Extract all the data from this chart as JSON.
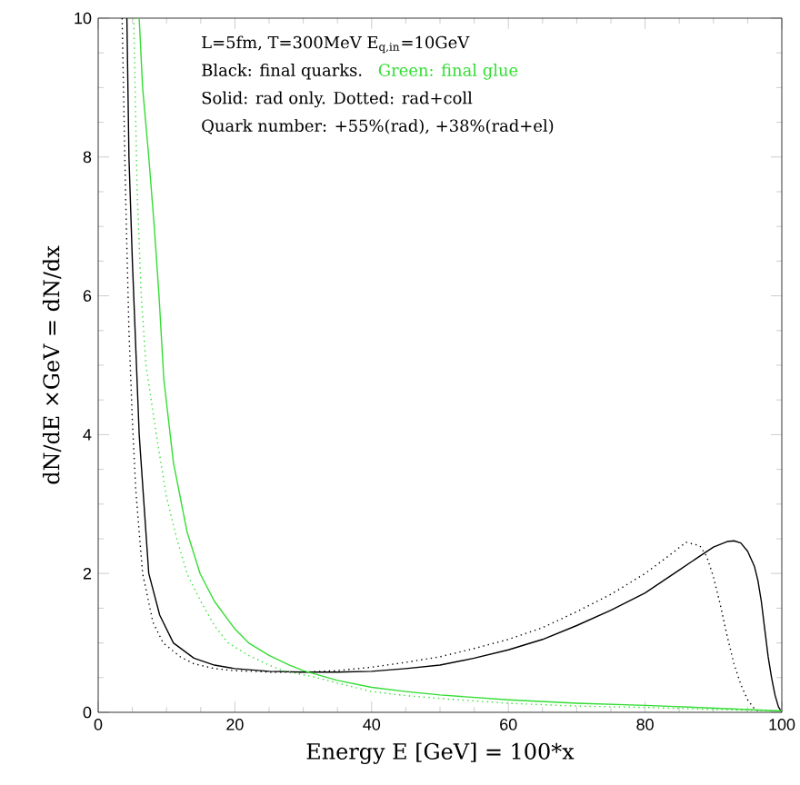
{
  "chart_data": {
    "type": "line",
    "xlabel": "Energy E [GeV] = 100*x",
    "ylabel": "dN/dE ×GeV = dN/dx",
    "xlim": [
      0,
      100
    ],
    "ylim": [
      0,
      10
    ],
    "xticks": [
      0,
      20,
      40,
      60,
      80,
      100
    ],
    "yticks": [
      0,
      2,
      4,
      6,
      8,
      10
    ],
    "grid": false,
    "annotations": [
      "L=5fm, T=300MeV E$_{q,in}$=10GeV",
      "Black: final quarks.",
      "Green:  final glue",
      "Solid: rad only.  Dotted: rad+coll",
      "Quark number: +55%(rad), +38%(rad+el)"
    ],
    "series": [
      {
        "color": "#000000",
        "line_style": "solid",
        "x": [
          4.2,
          4.5,
          5.0,
          5.6,
          6.0,
          7.4,
          9.0,
          11.0,
          14,
          17,
          20,
          25,
          30,
          35,
          40,
          45,
          50,
          55,
          60,
          65,
          70,
          75,
          80,
          85,
          88,
          90,
          92,
          93,
          94,
          95,
          96,
          96.5,
          97,
          97.5,
          98,
          98.5,
          99,
          99.5,
          100
        ],
        "values": [
          10,
          8,
          6.5,
          5,
          4,
          2,
          1.4,
          1.0,
          0.78,
          0.68,
          0.63,
          0.59,
          0.58,
          0.58,
          0.59,
          0.63,
          0.68,
          0.78,
          0.9,
          1.05,
          1.25,
          1.47,
          1.72,
          2.05,
          2.25,
          2.38,
          2.46,
          2.47,
          2.44,
          2.32,
          2.1,
          1.9,
          1.6,
          1.2,
          0.8,
          0.5,
          0.25,
          0.08,
          0
        ]
      },
      {
        "color": "#000000",
        "line_style": "dotted",
        "x": [
          3.5,
          4,
          4.5,
          5,
          5.5,
          6.5,
          8,
          9.5,
          12,
          14,
          17,
          20,
          25,
          30,
          35,
          40,
          45,
          50,
          55,
          60,
          65,
          70,
          75,
          80,
          83,
          86,
          88,
          89,
          90,
          91,
          92,
          93,
          94,
          95,
          96,
          97
        ],
        "values": [
          10,
          7.5,
          5.5,
          4.2,
          3.2,
          2,
          1.3,
          1,
          0.8,
          0.7,
          0.63,
          0.6,
          0.58,
          0.58,
          0.6,
          0.65,
          0.72,
          0.8,
          0.92,
          1.05,
          1.22,
          1.45,
          1.7,
          2.0,
          2.22,
          2.45,
          2.4,
          2.25,
          1.95,
          1.55,
          1.1,
          0.7,
          0.4,
          0.18,
          0.05,
          0
        ]
      },
      {
        "color": "#33dd33",
        "line_style": "solid",
        "x": [
          6.0,
          6.5,
          7.4,
          8.2,
          8.9,
          9.6,
          11,
          13,
          14.9,
          17,
          20,
          22,
          25,
          28,
          30,
          35,
          40,
          45,
          50,
          60,
          70,
          80,
          90,
          100
        ],
        "values": [
          10,
          9,
          8,
          7,
          6,
          4.8,
          3.6,
          2.6,
          2,
          1.6,
          1.2,
          1.0,
          0.82,
          0.68,
          0.6,
          0.46,
          0.36,
          0.3,
          0.25,
          0.18,
          0.13,
          0.1,
          0.06,
          0.02
        ]
      },
      {
        "color": "#33dd33",
        "line_style": "dotted",
        "x": [
          5.2,
          5.7,
          6.3,
          7,
          8.5,
          10,
          11.5,
          13,
          15,
          17,
          19,
          22,
          25,
          27,
          30,
          32,
          35,
          40,
          45,
          50,
          60,
          70,
          80,
          90,
          100
        ],
        "values": [
          10,
          7.5,
          6,
          5,
          4,
          3.1,
          2.5,
          2,
          1.6,
          1.25,
          1,
          0.82,
          0.68,
          0.6,
          0.54,
          0.5,
          0.42,
          0.3,
          0.24,
          0.2,
          0.13,
          0.09,
          0.07,
          0.04,
          0.02
        ]
      }
    ]
  }
}
